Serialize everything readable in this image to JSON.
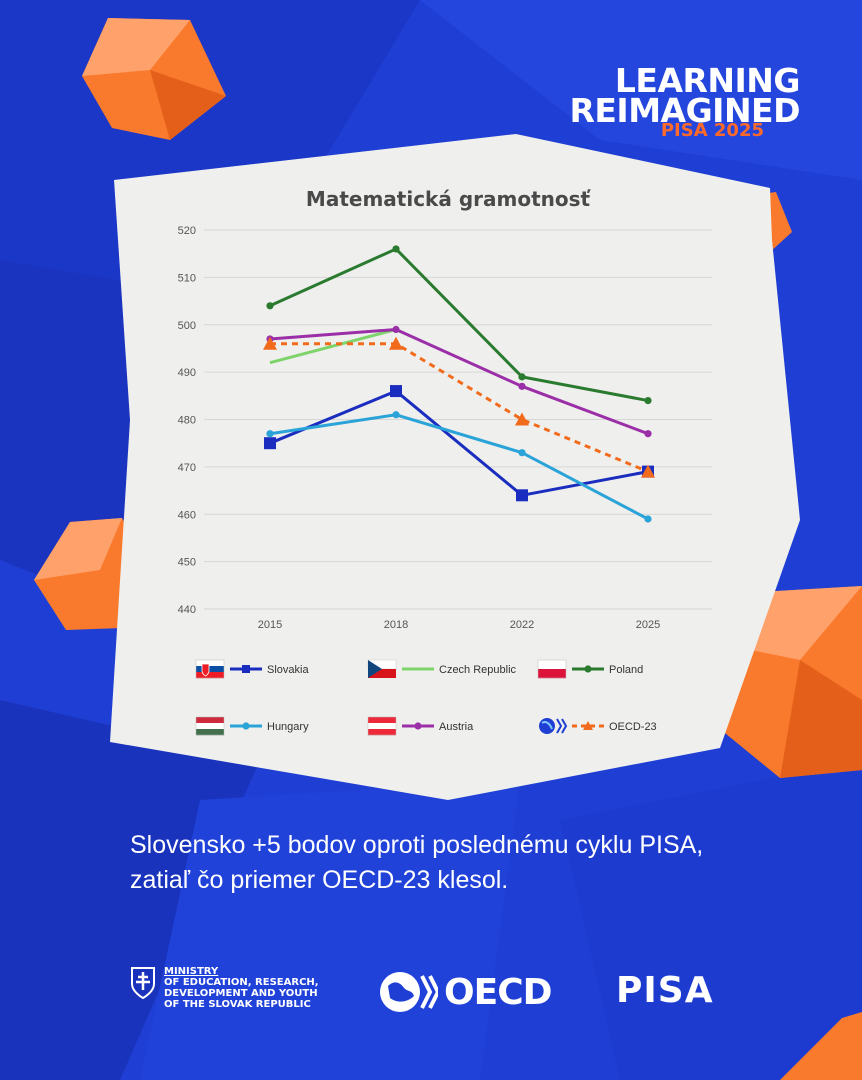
{
  "brand": {
    "line1": "LEARNING",
    "line2": "REIMAGINED",
    "sub": "PISA 2025"
  },
  "chart_data": {
    "type": "line",
    "title": "Matematická gramotnosť",
    "x": [
      "2015",
      "2018",
      "2022",
      "2025"
    ],
    "ylim": [
      440,
      520
    ],
    "yticks": [
      440,
      450,
      460,
      470,
      480,
      490,
      500,
      510,
      520
    ],
    "grid": true,
    "legend_position": "bottom",
    "series": [
      {
        "name": "Slovakia",
        "values": [
          475,
          486,
          464,
          469
        ],
        "color": "#1a2dbf",
        "marker": "square",
        "dash": false,
        "flag": "slovakia"
      },
      {
        "name": "Czech Republic",
        "values": [
          492,
          499,
          null,
          null
        ],
        "color": "#7ed46a",
        "marker": "none",
        "dash": false,
        "flag": "czech"
      },
      {
        "name": "Poland",
        "values": [
          504,
          516,
          489,
          484
        ],
        "color": "#2a7a2f",
        "marker": "circle",
        "dash": false,
        "flag": "poland"
      },
      {
        "name": "Hungary",
        "values": [
          477,
          481,
          473,
          459
        ],
        "color": "#2aa3d8",
        "marker": "circle",
        "dash": false,
        "flag": "hungary"
      },
      {
        "name": "Austria",
        "values": [
          497,
          499,
          487,
          477
        ],
        "color": "#9b2fa8",
        "marker": "circle",
        "dash": false,
        "flag": "austria"
      },
      {
        "name": "OECD-23",
        "values": [
          496,
          496,
          480,
          469
        ],
        "color": "#f26b1d",
        "marker": "triangle",
        "dash": true,
        "flag": "oecd"
      }
    ]
  },
  "tagline": {
    "line1": "Slovensko +5 bodov oproti poslednému cyklu PISA,",
    "line2": "zatiaľ čo priemer OECD-23 klesol."
  },
  "footer": {
    "ministry_line1": "MINISTRY",
    "ministry_line2": "OF EDUCATION, RESEARCH,",
    "ministry_line3": "DEVELOPMENT AND YOUTH",
    "ministry_line4": "OF THE SLOVAK REPUBLIC",
    "oecd": "OECD",
    "pisa": "PISA"
  },
  "colors": {
    "background": "#1f3fd4",
    "accent": "#ff6a2b",
    "card": "#efefed"
  }
}
